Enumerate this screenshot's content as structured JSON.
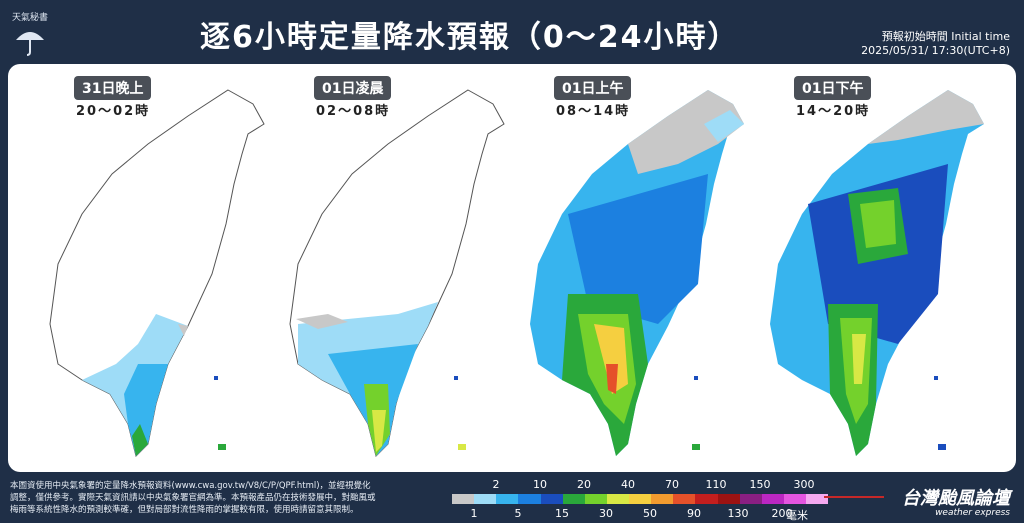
{
  "header": {
    "logo_text": "天氣秘書",
    "title": "逐6小時定量降水預報（0～24小時）",
    "init_label": "預報初始時間 Initial time",
    "init_time": "2025/05/31/ 17:30(UTC+8)"
  },
  "maps": [
    {
      "period": "31日晚上",
      "range": "20～02時",
      "rain": "south"
    },
    {
      "period": "01日凌晨",
      "range": "02～08時",
      "rain": "south-west"
    },
    {
      "period": "01日上午",
      "range": "08～14時",
      "rain": "widespread-south"
    },
    {
      "period": "01日下午",
      "range": "14～20時",
      "rain": "widespread-north"
    }
  ],
  "legend": {
    "top_labels": [
      "2",
      "10",
      "20",
      "40",
      "70",
      "110",
      "150",
      "300"
    ],
    "bottom_labels": [
      "1",
      "5",
      "15",
      "30",
      "50",
      "90",
      "130",
      "200"
    ],
    "unit": "毫米",
    "colors": [
      "#c8c8c8",
      "#9edcf7",
      "#37b4ee",
      "#1c80e0",
      "#1a4dbd",
      "#2aa83b",
      "#74d12c",
      "#d8e845",
      "#f5cf40",
      "#f29b2f",
      "#e5512a",
      "#c31e1e",
      "#9c1212",
      "#8a1f82",
      "#bb27c2",
      "#e455e0",
      "#f5a9f0"
    ]
  },
  "footer": {
    "note_1": "本圖資使用中央氣象署的定量降水預報資料(www.cwa.gov.tw/V8/C/P/QPF.html)，並經視覺化",
    "note_2": "調整，僅供參考。實際天氣資訊請以中央氣象署官網為準。本預報產品仍在技術發展中，對颱風或",
    "note_3": "梅雨等系統性降水的預測較準確，但對局部對流性降雨的掌握較有限，使用時請留意其限制。",
    "brand": "台灣颱風論壇",
    "brand_sub": "weather express"
  }
}
